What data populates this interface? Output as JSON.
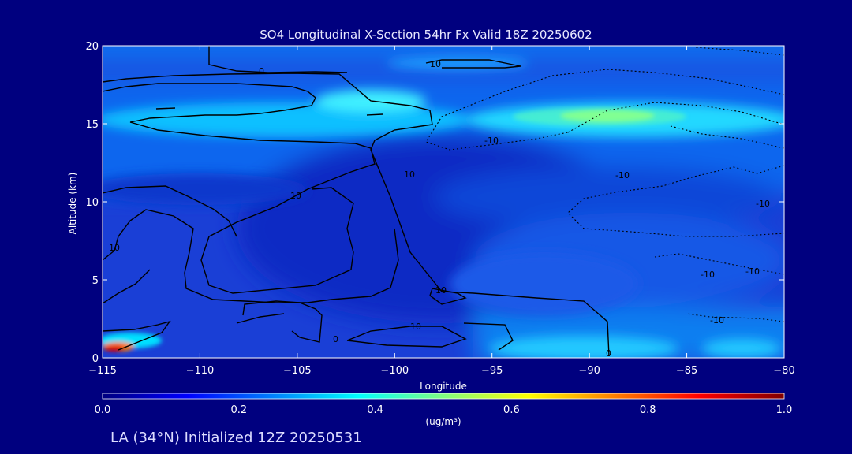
{
  "chart_data": {
    "type": "heatmap",
    "title": "SO4 Longitudinal X-Section 54hr  Fx Valid 18Z 20250602",
    "xlabel": "Longitude",
    "ylabel": "Altitude (km)",
    "xlim": [
      -115,
      -80
    ],
    "ylim": [
      0,
      20
    ],
    "x_ticks": [
      -115,
      -110,
      -105,
      -100,
      -95,
      -90,
      -85,
      -80
    ],
    "y_ticks": [
      0,
      5,
      10,
      15,
      20
    ],
    "colorbar": {
      "min": 0.0,
      "max": 1.0,
      "ticks": [
        "0.0",
        "0.2",
        "0.4",
        "0.6",
        "0.8",
        "1.0"
      ],
      "units": "(ug/m³)",
      "colors": [
        "#00007f",
        "#0000ff",
        "#0080ff",
        "#00ffff",
        "#80ff80",
        "#ffff00",
        "#ff8000",
        "#ff0000",
        "#7f0000"
      ]
    },
    "grid": false,
    "contour_labels": [
      "0",
      "10",
      "10",
      "-10",
      "10",
      "10",
      "10",
      "10",
      "-10",
      "-10",
      "0",
      "0",
      "-10",
      "-10",
      "-10"
    ]
  },
  "footer": "LA (34°N) Initialized 12Z 20250531"
}
